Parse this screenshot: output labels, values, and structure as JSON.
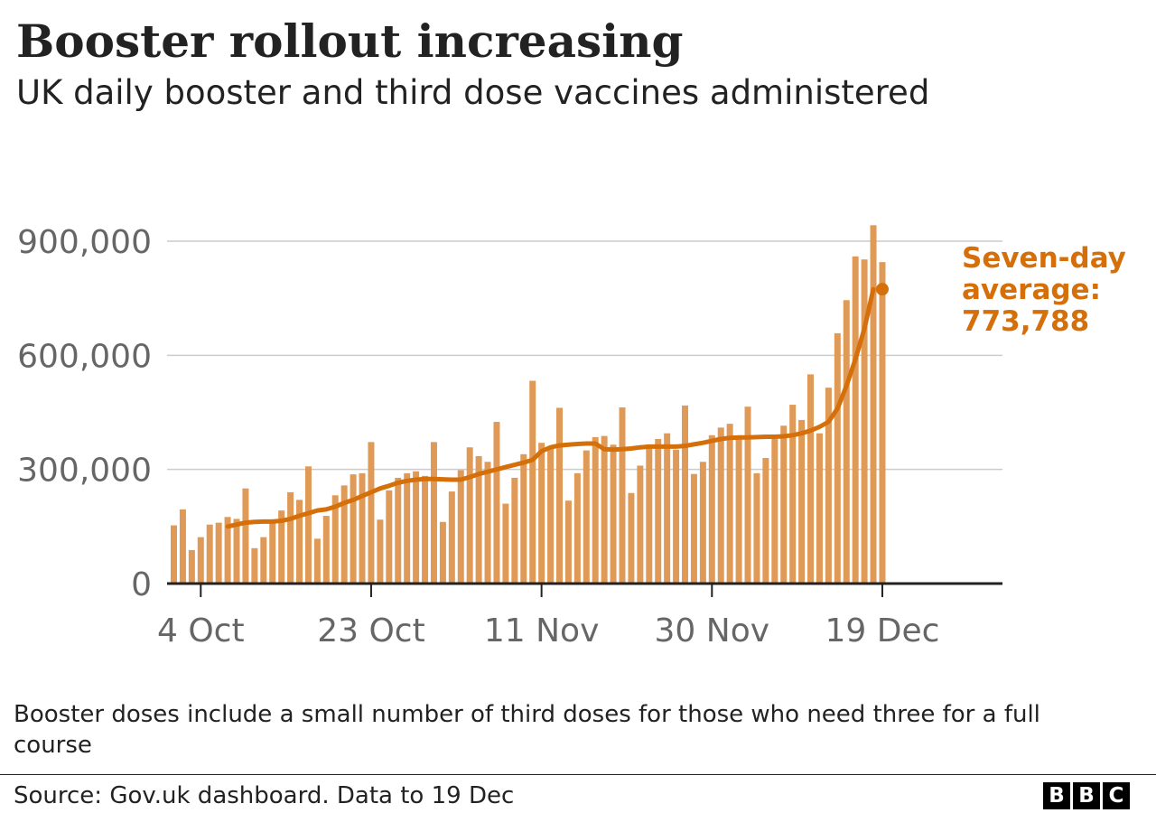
{
  "title": "Booster rollout increasing",
  "subtitle": "UK daily booster and third dose vaccines administered",
  "note": "Booster doses include a small number of third doses for those who need three for a full course",
  "source": "Source: Gov.uk dashboard. Data to 19 Dec",
  "logo": [
    "B",
    "B",
    "C"
  ],
  "colors": {
    "bars": "#e09a58",
    "line": "#d46f0a",
    "grid": "#cccccc",
    "axis": "#222222",
    "tick_label": "#666666",
    "annotation": "#d46f0a"
  },
  "chart_data": {
    "type": "bar",
    "grid": true,
    "ylim": [
      0,
      900000
    ],
    "y_ticks": [
      0,
      300000,
      600000,
      900000
    ],
    "y_tick_labels": [
      "0",
      "300,000",
      "600,000",
      "900,000"
    ],
    "x_tick_labels": [
      "4 Oct",
      "23 Oct",
      "11 Nov",
      "30 Nov",
      "19 Dec"
    ],
    "x_tick_dates": [
      "2021-10-04",
      "2021-10-23",
      "2021-11-11",
      "2021-11-30",
      "2021-12-19"
    ],
    "date_range": [
      "2021-10-01",
      "2021-12-19"
    ],
    "series": [
      {
        "type": "bar",
        "values": [
          153000,
          195000,
          88000,
          122000,
          155000,
          160000,
          175000,
          170000,
          250000,
          93000,
          122000,
          162000,
          192000,
          240000,
          220000,
          308000,
          118000,
          178000,
          232000,
          258000,
          287000,
          290000,
          372000,
          168000,
          245000,
          278000,
          290000,
          295000,
          283000,
          372000,
          162000,
          242000,
          298000,
          358000,
          335000,
          320000,
          425000,
          210000,
          278000,
          340000,
          533000,
          370000,
          355000,
          462000,
          218000,
          290000,
          350000,
          385000,
          388000,
          365000,
          463000,
          238000,
          310000,
          365000,
          380000,
          395000,
          352000,
          468000,
          288000,
          320000,
          390000,
          410000,
          420000,
          385000,
          465000,
          290000,
          330000,
          380000,
          415000,
          470000,
          430000,
          550000,
          395000,
          515000,
          658000,
          745000,
          860000,
          852000,
          942000,
          845000
        ]
      },
      {
        "type": "line",
        "start_date": "2021-10-07",
        "values": [
          150000,
          155000,
          160000,
          162000,
          163000,
          163000,
          165000,
          170000,
          178000,
          185000,
          192000,
          195000,
          202000,
          212000,
          220000,
          230000,
          240000,
          250000,
          257000,
          265000,
          270000,
          273000,
          275000,
          275000,
          274000,
          273000,
          273000,
          280000,
          288000,
          294000,
          300000,
          306000,
          312000,
          318000,
          325000,
          348000,
          358000,
          363000,
          365000,
          367000,
          368000,
          368000,
          353000,
          352000,
          353000,
          355000,
          358000,
          360000,
          360000,
          360000,
          360000,
          362000,
          366000,
          370000,
          375000,
          380000,
          383000,
          384000,
          384000,
          385000,
          386000,
          386000,
          387000,
          390000,
          395000,
          402000,
          412000,
          425000,
          460000,
          520000,
          590000,
          670000,
          773788
        ]
      }
    ],
    "annotation": {
      "lines": [
        "Seven-day",
        "average:",
        "773,788"
      ],
      "date": "2021-12-19",
      "value": 773788
    }
  }
}
